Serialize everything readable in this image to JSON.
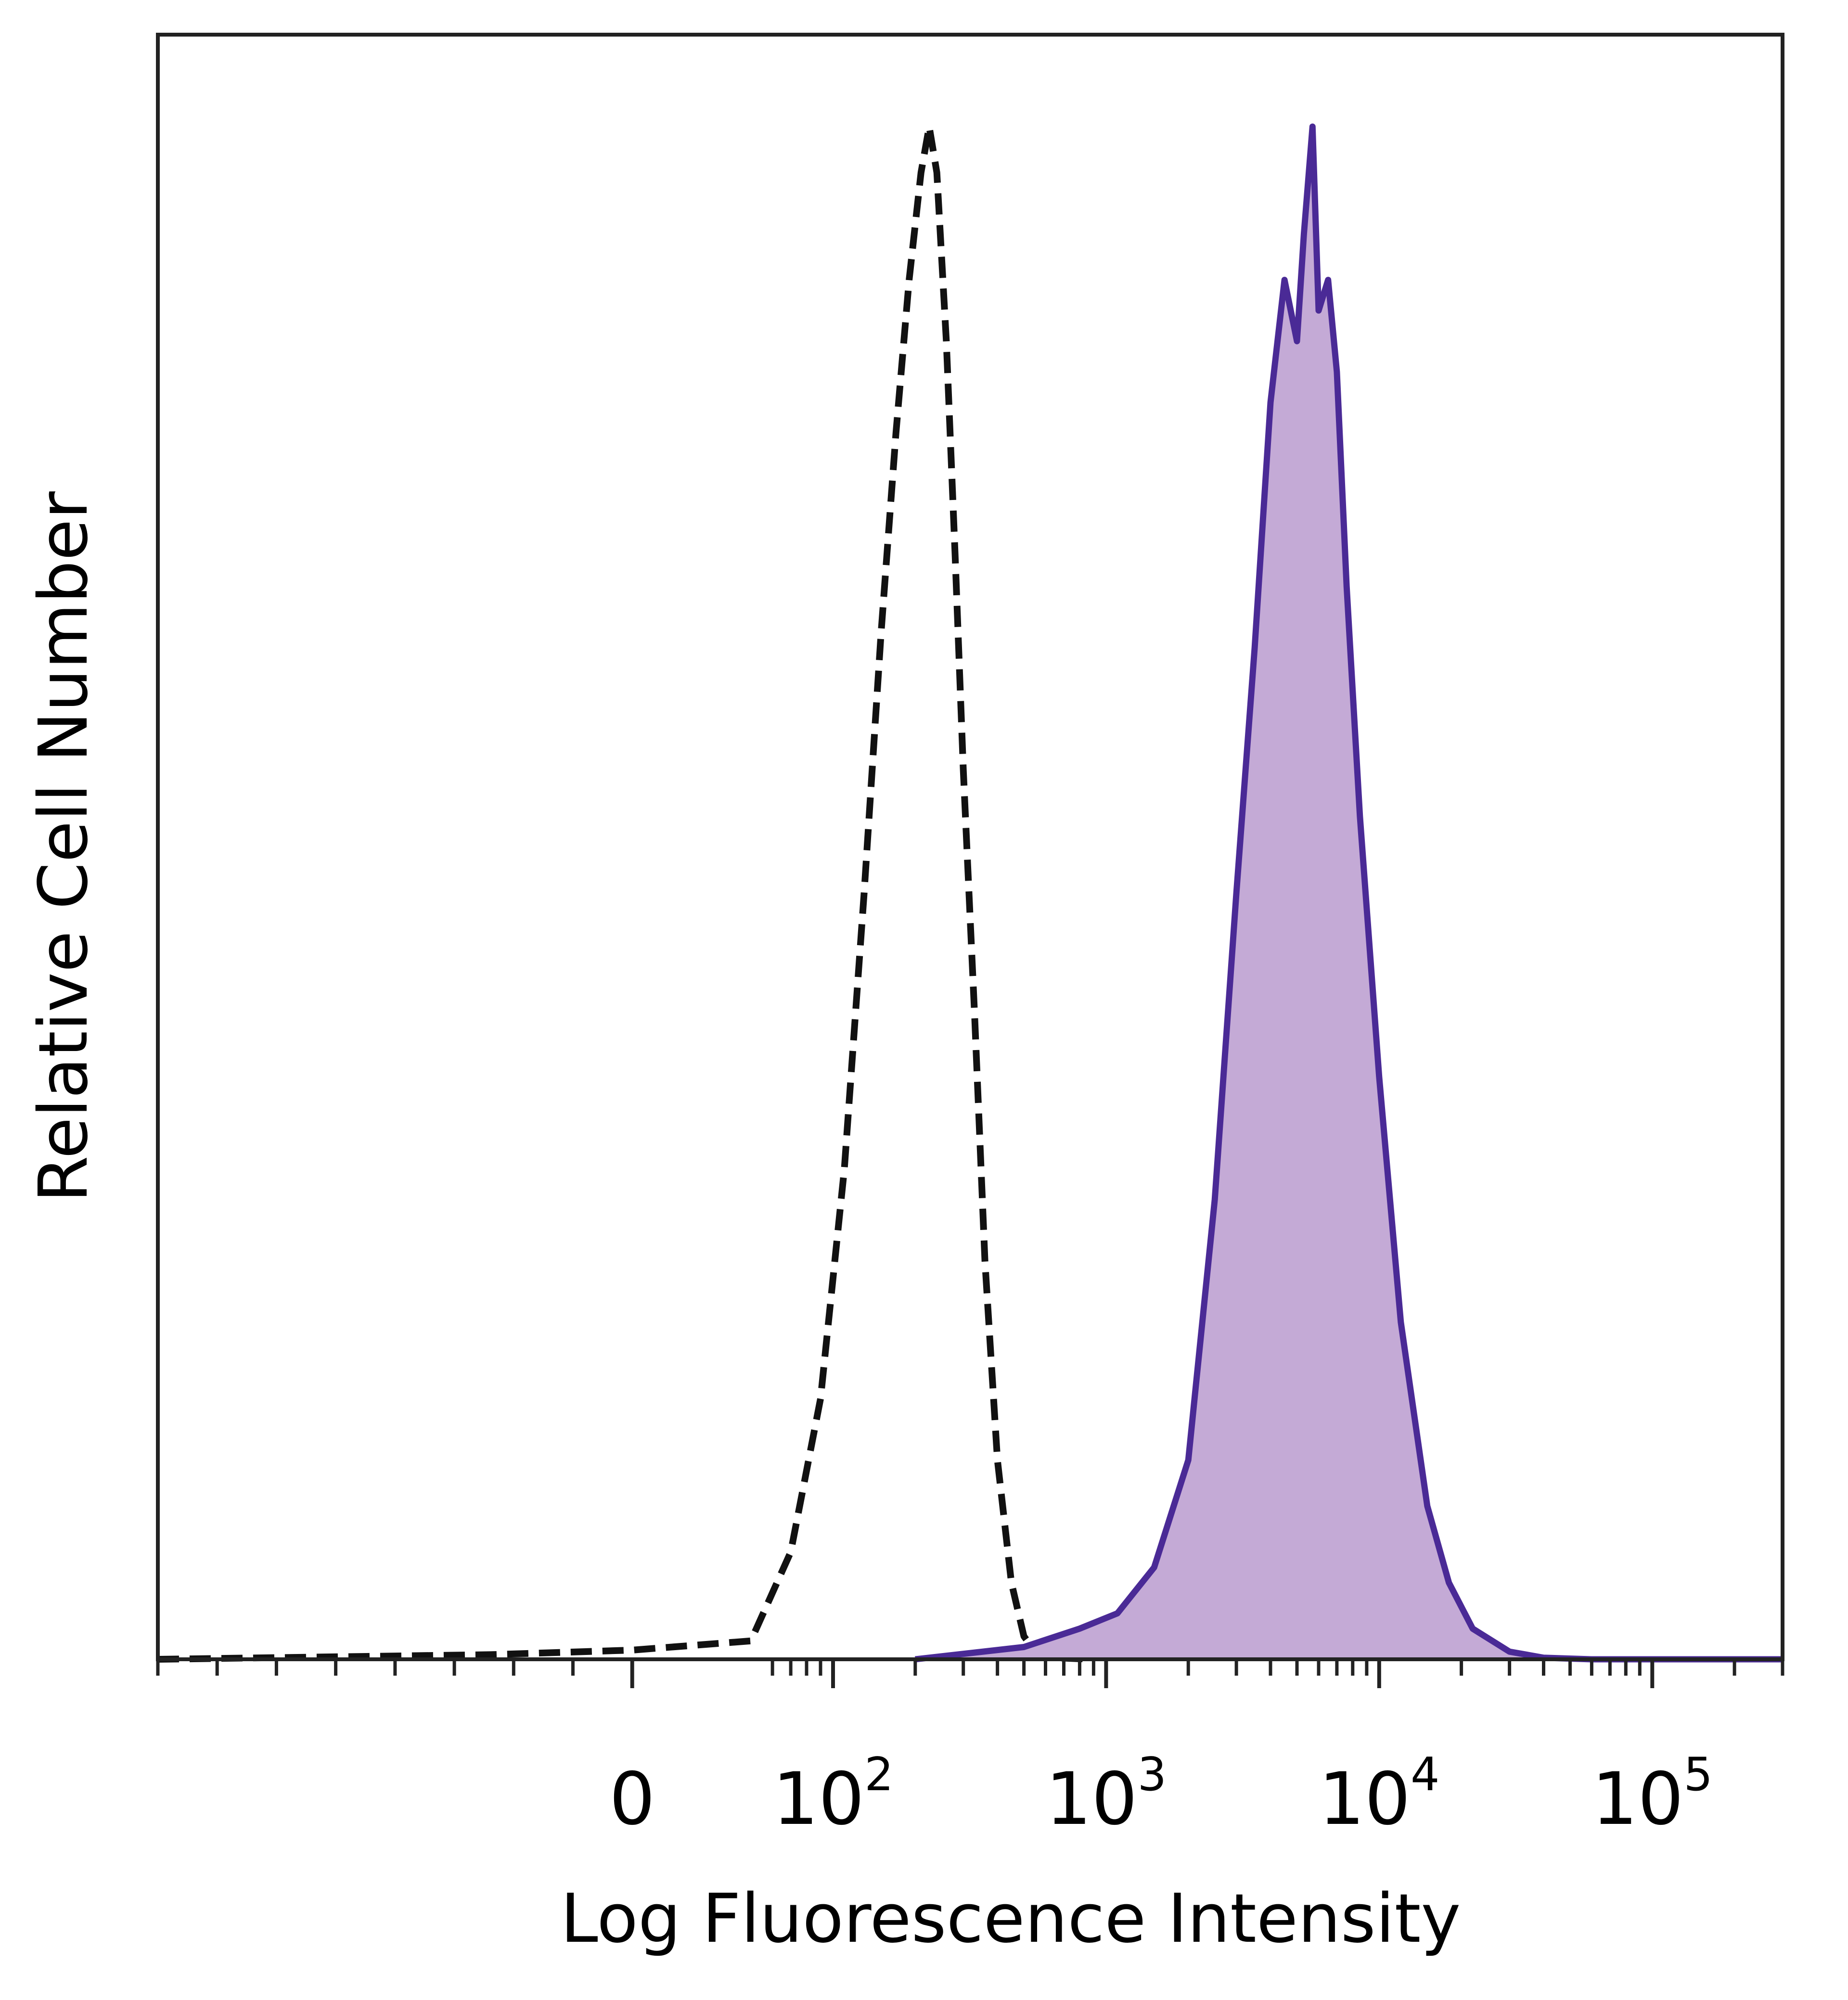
{
  "chart_data": {
    "type": "area",
    "title": "",
    "xlabel": "Log Fluorescence Intensity",
    "ylabel": "Relative Cell Number",
    "x_scale": "biexponential",
    "x_range": [
      -200,
      300000
    ],
    "y_range": [
      0,
      1.06
    ],
    "grid": false,
    "legend": "none",
    "x_tick_labels": [
      {
        "value": 0,
        "base": "0",
        "exp": ""
      },
      {
        "value": 100,
        "base": "10",
        "exp": "2"
      },
      {
        "value": 1000,
        "base": "10",
        "exp": "3"
      },
      {
        "value": 10000,
        "base": "10",
        "exp": "4"
      },
      {
        "value": 100000,
        "base": "10",
        "exp": "5"
      }
    ],
    "series": [
      {
        "style": "dashed",
        "fill": false,
        "color": "#111111",
        "x": [
          -200,
          -60,
          0,
          50,
          70,
          90,
          110,
          130,
          150,
          170,
          190,
          210,
          225,
          240,
          260,
          280,
          300,
          330,
          360,
          400,
          450,
          500,
          550,
          650,
          900
        ],
        "y": [
          0,
          0.003,
          0.006,
          0.012,
          0.07,
          0.17,
          0.32,
          0.5,
          0.67,
          0.8,
          0.9,
          0.97,
          1.0,
          0.97,
          0.86,
          0.72,
          0.58,
          0.42,
          0.26,
          0.13,
          0.05,
          0.015,
          0.005,
          0.001,
          0
        ]
      },
      {
        "style": "solid",
        "fill": true,
        "color": "#4a2a96",
        "fill_color": "#c4aad6",
        "x": [
          200,
          500,
          800,
          1100,
          1500,
          2000,
          2500,
          3000,
          3500,
          4000,
          4500,
          5000,
          5300,
          5700,
          6000,
          6500,
          7000,
          7600,
          8500,
          10000,
          12000,
          15000,
          18000,
          22000,
          30000,
          40000,
          60000,
          100000,
          300000
        ],
        "y": [
          0,
          0.008,
          0.02,
          0.03,
          0.06,
          0.13,
          0.3,
          0.5,
          0.66,
          0.82,
          0.9,
          0.86,
          0.93,
          1.0,
          0.88,
          0.9,
          0.84,
          0.7,
          0.55,
          0.38,
          0.22,
          0.1,
          0.05,
          0.02,
          0.005,
          0.001,
          0,
          0,
          0
        ]
      }
    ]
  }
}
